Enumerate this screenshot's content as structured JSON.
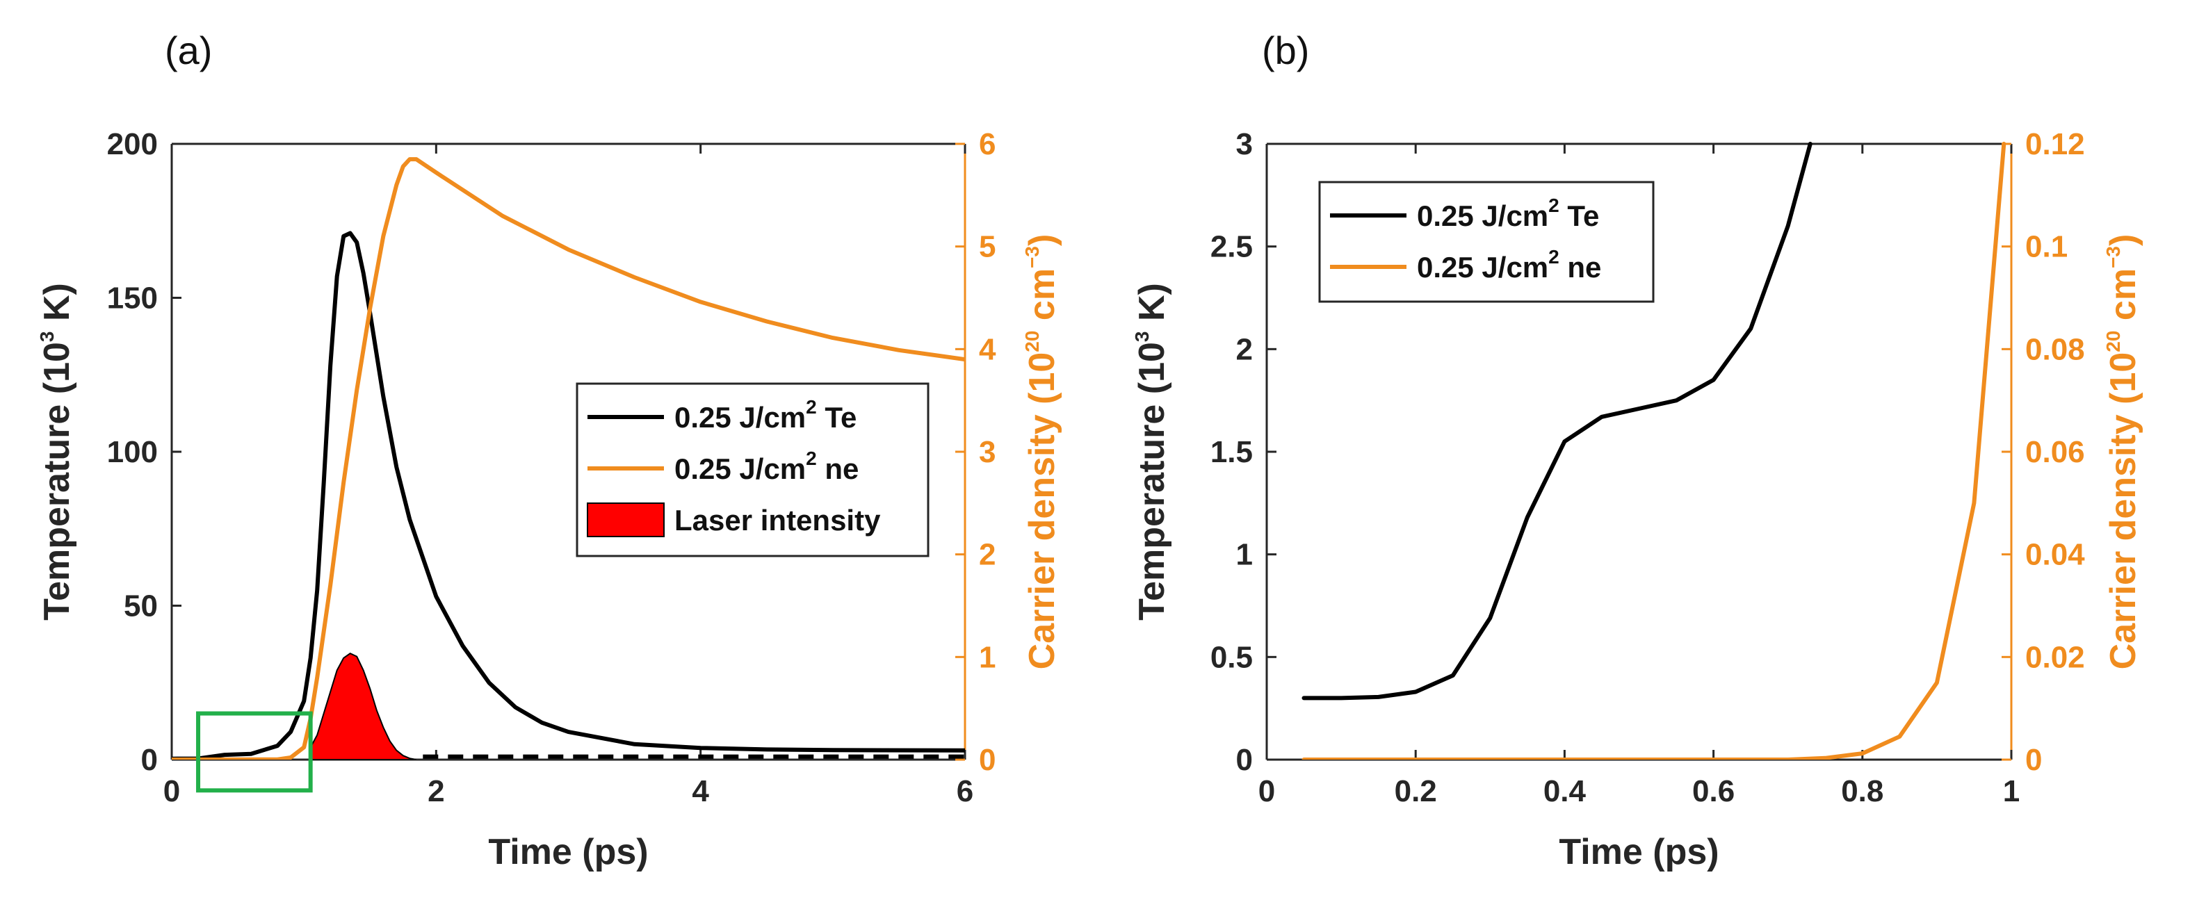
{
  "chart_data": [
    {
      "type": "line",
      "panel_label": "(a)",
      "xlabel": "Time (ps)",
      "ylabel_left": {
        "text": "Temperature (10",
        "sup": "3",
        "tail": " K)"
      },
      "ylabel_right": {
        "text": "Carrier density (10",
        "sup": "20",
        "mid": " cm",
        "sup2": "−3",
        "tail": ")"
      },
      "xlim": [
        0,
        6
      ],
      "ylim_left": [
        0,
        200
      ],
      "ylim_right": [
        0,
        6
      ],
      "xticks": [
        "0",
        "2",
        "4",
        "6"
      ],
      "yticks_left": [
        "0",
        "50",
        "100",
        "150",
        "200"
      ],
      "yticks_right": [
        "0",
        "1",
        "2",
        "3",
        "4",
        "5",
        "6"
      ],
      "legend_position": "center-right",
      "legend": [
        {
          "pre": "0.25 J/cm",
          "sup": "2",
          "post": " Te",
          "color": "#000000",
          "kind": "line"
        },
        {
          "pre": "0.25 J/cm",
          "sup": "2",
          "post": " ne",
          "color": "#f08c1e",
          "kind": "line"
        },
        {
          "pre": "Laser intensity",
          "sup": "",
          "post": "",
          "color": "#ff0000",
          "kind": "patch"
        }
      ],
      "series": [
        {
          "name": "0.25 J/cm2 Te",
          "axis": "left",
          "color": "#000000",
          "x": [
            0,
            0.2,
            0.4,
            0.6,
            0.8,
            0.9,
            1.0,
            1.05,
            1.1,
            1.15,
            1.2,
            1.25,
            1.3,
            1.35,
            1.4,
            1.45,
            1.5,
            1.6,
            1.7,
            1.8,
            2.0,
            2.2,
            2.4,
            2.6,
            2.8,
            3.0,
            3.5,
            4.0,
            4.5,
            5.0,
            6.0
          ],
          "y": [
            0.3,
            0.33,
            1.55,
            1.85,
            4.5,
            9,
            19,
            33,
            55,
            90,
            128,
            157,
            170,
            171,
            168,
            158,
            145,
            118,
            95,
            78,
            53,
            37,
            25,
            17,
            12,
            9,
            5,
            3.8,
            3.3,
            3.1,
            3.0
          ]
        },
        {
          "name": "0.25 J/cm2 ne",
          "axis": "right",
          "color": "#f08c1e",
          "x": [
            0,
            0.8,
            0.9,
            1.0,
            1.05,
            1.1,
            1.2,
            1.3,
            1.4,
            1.5,
            1.6,
            1.7,
            1.75,
            1.8,
            1.85,
            2.0,
            2.5,
            3.0,
            3.5,
            4.0,
            4.5,
            5.0,
            5.5,
            6.0
          ],
          "y": [
            0,
            0.002,
            0.02,
            0.12,
            0.4,
            0.8,
            1.7,
            2.7,
            3.6,
            4.4,
            5.1,
            5.6,
            5.78,
            5.85,
            5.85,
            5.72,
            5.3,
            4.97,
            4.7,
            4.46,
            4.27,
            4.11,
            3.99,
            3.9
          ]
        },
        {
          "name": "Laser intensity",
          "axis": "left",
          "color": "#ff0000",
          "fill": true,
          "x": [
            1.05,
            1.1,
            1.15,
            1.2,
            1.25,
            1.3,
            1.35,
            1.4,
            1.45,
            1.5,
            1.55,
            1.6,
            1.65,
            1.7,
            1.75,
            1.8,
            1.85
          ],
          "y": [
            4,
            8,
            15,
            22,
            29,
            33,
            34.5,
            33.5,
            29,
            23,
            16,
            10.5,
            6,
            3,
            1.3,
            0.4,
            0
          ]
        },
        {
          "name": "baseline",
          "axis": "left",
          "color": "#000000",
          "dashed": true,
          "x": [
            1.9,
            6.0
          ],
          "y": [
            1.0,
            1.0
          ]
        }
      ],
      "annotations": [
        {
          "type": "rectangle",
          "color": "#22b04a",
          "x": [
            0.2,
            1.05
          ],
          "y_left": [
            -10,
            15
          ]
        }
      ]
    },
    {
      "type": "line",
      "panel_label": "(b)",
      "xlabel": "Time (ps)",
      "ylabel_left": {
        "text": "Temperature (10",
        "sup": "3",
        "tail": " K)"
      },
      "ylabel_right": {
        "text": "Carrier density (10",
        "sup": "20",
        "mid": " cm",
        "sup2": "−3",
        "tail": ")"
      },
      "xlim": [
        0,
        1
      ],
      "ylim_left": [
        0,
        3
      ],
      "ylim_right": [
        0,
        0.12
      ],
      "xticks": [
        "0",
        "0.2",
        "0.4",
        "0.6",
        "0.8",
        "1"
      ],
      "yticks_left": [
        "0",
        "0.5",
        "1",
        "1.5",
        "2",
        "2.5",
        "3"
      ],
      "yticks_right": [
        "0",
        "0.02",
        "0.04",
        "0.06",
        "0.08",
        "0.1",
        "0.12"
      ],
      "legend_position": "top-left",
      "legend": [
        {
          "pre": "0.25 J/cm",
          "sup": "2",
          "post": " Te",
          "color": "#000000",
          "kind": "line"
        },
        {
          "pre": "0.25 J/cm",
          "sup": "2",
          "post": " ne",
          "color": "#f08c1e",
          "kind": "line"
        }
      ],
      "series": [
        {
          "name": "0.25 J/cm2 Te",
          "axis": "left",
          "color": "#000000",
          "x": [
            0.05,
            0.1,
            0.15,
            0.2,
            0.25,
            0.3,
            0.35,
            0.4,
            0.45,
            0.5,
            0.55,
            0.6,
            0.65,
            0.7,
            0.73
          ],
          "y": [
            0.3,
            0.3,
            0.305,
            0.33,
            0.41,
            0.69,
            1.18,
            1.55,
            1.67,
            1.71,
            1.75,
            1.85,
            2.1,
            2.6,
            3.0
          ]
        },
        {
          "name": "0.25 J/cm2 ne",
          "axis": "right",
          "color": "#f08c1e",
          "x": [
            0.05,
            0.6,
            0.7,
            0.75,
            0.8,
            0.85,
            0.9,
            0.95,
            0.99
          ],
          "y": [
            0,
            0,
            0,
            0.0003,
            0.0012,
            0.0045,
            0.015,
            0.05,
            0.12
          ]
        }
      ],
      "annotations": []
    }
  ]
}
